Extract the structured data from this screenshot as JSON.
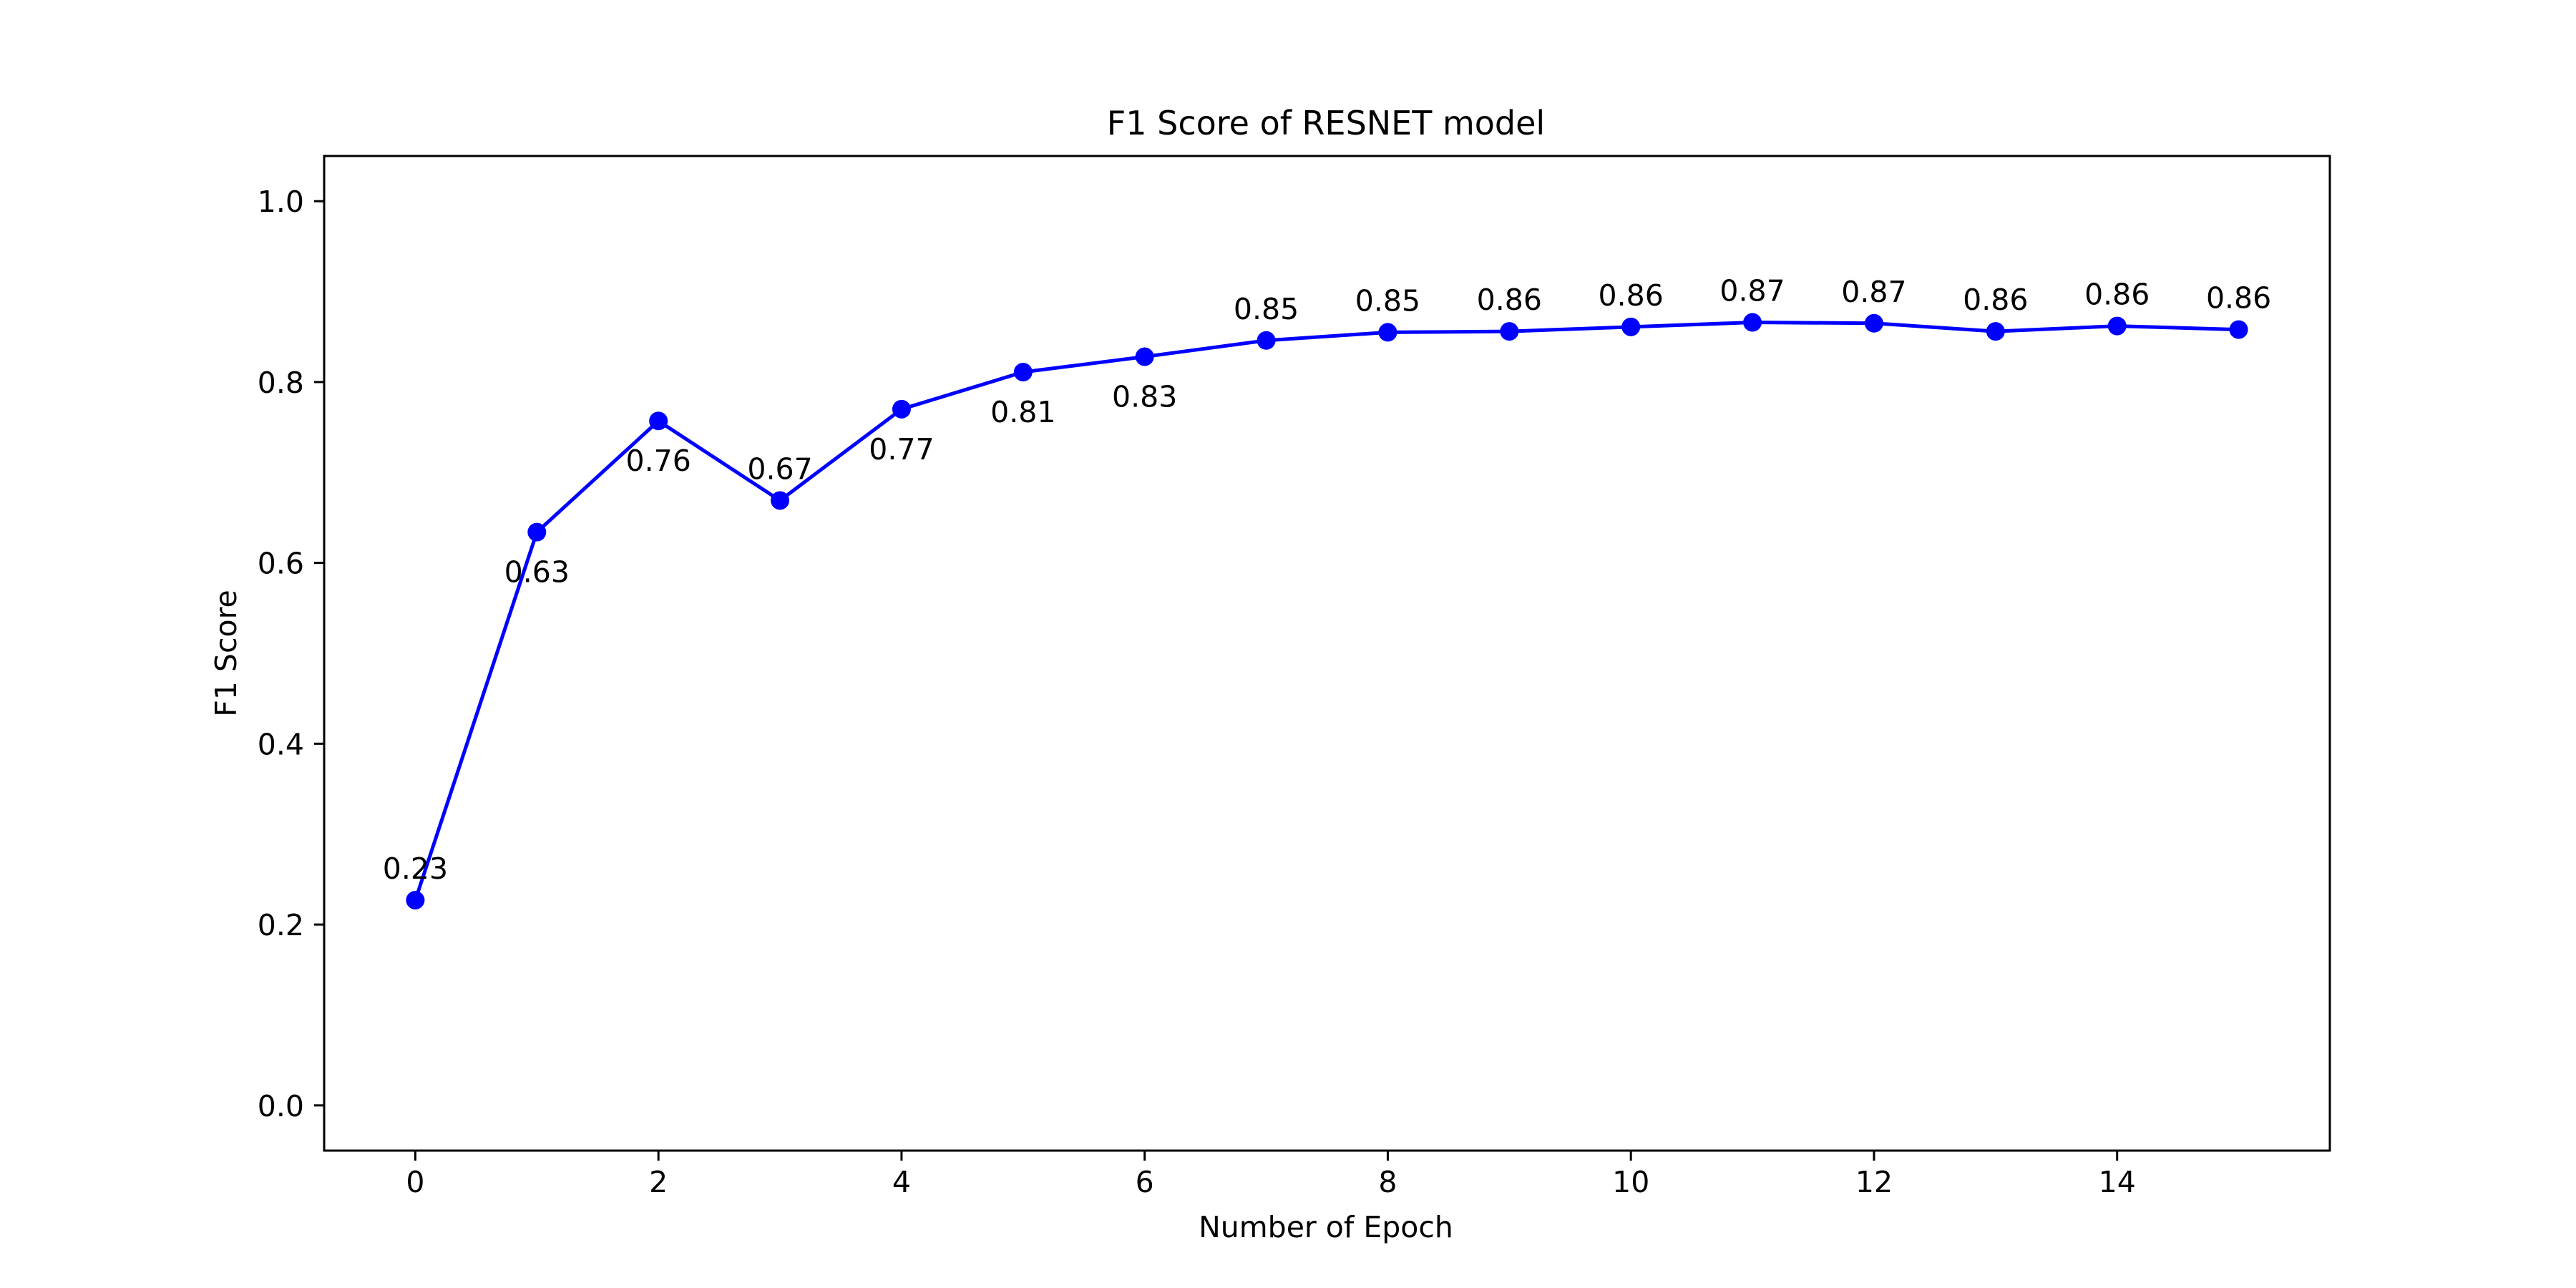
{
  "chart_data": {
    "type": "line",
    "title": "F1 Score of RESNET model",
    "xlabel": "Number of Epoch",
    "ylabel": "F1 Score",
    "xlim": [
      -0.75,
      15.75
    ],
    "ylim": [
      -0.05,
      1.05
    ],
    "xticks": [
      0,
      2,
      4,
      6,
      8,
      10,
      12,
      14
    ],
    "yticks": [
      0.0,
      0.2,
      0.4,
      0.6,
      0.8,
      1.0
    ],
    "xtick_labels": [
      "0",
      "2",
      "4",
      "6",
      "8",
      "10",
      "12",
      "14"
    ],
    "ytick_labels": [
      "0.0",
      "0.2",
      "0.4",
      "0.6",
      "0.8",
      "1.0"
    ],
    "grid": false,
    "series": [
      {
        "color": "#0000ff",
        "marker": "circle",
        "x": [
          0,
          1,
          2,
          3,
          4,
          5,
          6,
          7,
          8,
          9,
          10,
          11,
          12,
          13,
          14,
          15
        ],
        "y": [
          0.227,
          0.634,
          0.757,
          0.669,
          0.77,
          0.811,
          0.828,
          0.846,
          0.855,
          0.856,
          0.861,
          0.866,
          0.865,
          0.856,
          0.862,
          0.858
        ],
        "labels": [
          "0.23",
          "0.63",
          "0.76",
          "0.67",
          "0.77",
          "0.81",
          "0.83",
          "0.85",
          "0.85",
          "0.86",
          "0.86",
          "0.87",
          "0.87",
          "0.86",
          "0.86",
          "0.86"
        ],
        "label_position": [
          "above",
          "below",
          "below",
          "above",
          "below",
          "below",
          "below",
          "above",
          "above",
          "above",
          "above",
          "above",
          "above",
          "above",
          "above",
          "above"
        ]
      }
    ]
  }
}
